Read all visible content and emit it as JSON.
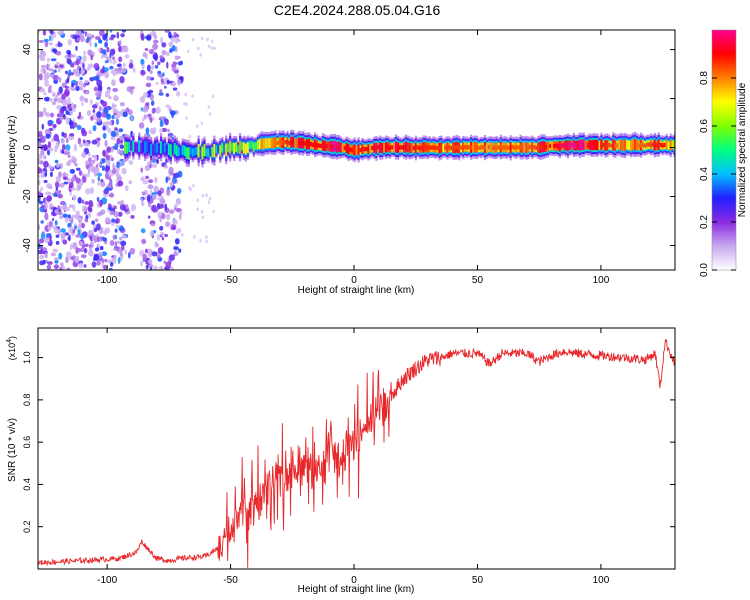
{
  "title": "C2E4.2024.288.05.04.G16",
  "chart_data": [
    {
      "type": "heatmap",
      "xlabel": "Height of straight line (km)",
      "ylabel": "Frequency (Hz)",
      "xlim": [
        -128,
        130
      ],
      "ylim": [
        -50,
        48
      ],
      "xticks": [
        -100,
        -50,
        0,
        50,
        100
      ],
      "yticks": [
        -40,
        -20,
        0,
        20,
        40
      ],
      "colorbar": {
        "label": "Normalized spectral amplitude",
        "range": [
          0,
          1
        ],
        "ticks": [
          0.0,
          0.2,
          0.4,
          0.6,
          0.8
        ],
        "tick_labels": [
          "0.0",
          "0.2",
          "0.4",
          "0.6",
          "0.8"
        ],
        "stops": [
          "#ffffff",
          "#c8a8f0",
          "#8a2be2",
          "#2020ff",
          "#00c0ff",
          "#00ff80",
          "#80ff00",
          "#ffff00",
          "#ff8000",
          "#ff0000",
          "#ff0090"
        ]
      },
      "noise_region_km": [
        -128,
        -70
      ],
      "ridge": {
        "x": [
          -93,
          -85,
          -75,
          -65,
          -55,
          -45,
          -35,
          -25,
          -15,
          -5,
          0,
          10,
          30,
          50,
          70,
          90,
          110,
          125,
          130
        ],
        "freq": [
          0,
          0,
          -1,
          -2,
          -1,
          0,
          2,
          2,
          1,
          0,
          -1,
          0,
          0,
          0,
          0,
          1,
          1,
          1,
          1
        ],
        "amp": [
          0.45,
          0.3,
          0.4,
          0.45,
          0.55,
          0.62,
          0.72,
          0.85,
          0.85,
          0.9,
          0.82,
          0.88,
          0.82,
          0.78,
          0.78,
          0.95,
          0.72,
          0.85,
          0.7
        ]
      }
    },
    {
      "type": "line",
      "xlabel": "Height of straight line (km)",
      "ylabel": "SNR (10 * v/v)",
      "scale_note": "(x10",
      "scale_exp": "4",
      "xlim": [
        -128,
        130
      ],
      "ylim": [
        0,
        1.14
      ],
      "xticks": [
        -100,
        -50,
        0,
        50,
        100
      ],
      "yticks": [
        0.2,
        0.4,
        0.6,
        0.8,
        1.0
      ],
      "series": [
        {
          "color": "#e8272a",
          "x": [
            -128,
            -110,
            -95,
            -88,
            -86,
            -80,
            -75,
            -70,
            -60,
            -55,
            -50,
            -45,
            -40,
            -35,
            -30,
            -25,
            -20,
            -15,
            -10,
            -5,
            0,
            5,
            10,
            15,
            20,
            25,
            30,
            35,
            40,
            50,
            55,
            60,
            70,
            75,
            80,
            85,
            90,
            100,
            110,
            118,
            122,
            124,
            126,
            130
          ],
          "values": [
            0.03,
            0.04,
            0.05,
            0.08,
            0.13,
            0.05,
            0.04,
            0.05,
            0.06,
            0.1,
            0.2,
            0.28,
            0.32,
            0.4,
            0.44,
            0.45,
            0.5,
            0.48,
            0.55,
            0.52,
            0.62,
            0.68,
            0.78,
            0.82,
            0.9,
            0.95,
            0.99,
            1.0,
            1.02,
            1.02,
            0.97,
            1.02,
            1.02,
            0.98,
            1.01,
            1.03,
            1.02,
            1.01,
            1.0,
            0.99,
            1.02,
            0.86,
            1.08,
            0.97
          ]
        }
      ]
    }
  ]
}
